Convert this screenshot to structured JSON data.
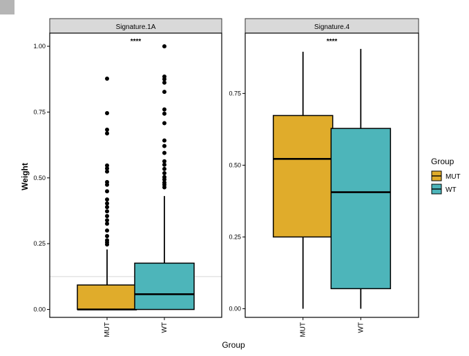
{
  "chart_data": {
    "type": "boxplot",
    "xlabel": "Group",
    "ylabel": "Weight",
    "legend": {
      "title": "Group",
      "placement": "right",
      "entries": [
        {
          "label": "MUT",
          "color": "#E0AC2B"
        },
        {
          "label": "WT",
          "color": "#4DB5BA"
        }
      ]
    },
    "colors": {
      "MUT": "#E0AC2B",
      "WT": "#4DB5BA",
      "strip": "#d9d9d9"
    },
    "grid": false,
    "panels": [
      {
        "title": "Signature.1A",
        "significance": "****",
        "ylim": [
          -0.03,
          1.05
        ],
        "yticks": [
          0.0,
          0.25,
          0.5,
          0.75,
          1.0
        ],
        "yticklabels": [
          "0.00",
          "0.25",
          "0.50",
          "0.75",
          "1.00"
        ],
        "reference_line": 0.125,
        "categories": [
          "MUT",
          "WT"
        ],
        "boxes": [
          {
            "group": "MUT",
            "whisker_low": 0.0,
            "q1": 0.0,
            "median": 0.0,
            "q3": 0.093,
            "whisker_high": 0.228,
            "outliers": [
              0.247,
              0.255,
              0.263,
              0.279,
              0.3,
              0.326,
              0.339,
              0.355,
              0.373,
              0.389,
              0.403,
              0.418,
              0.449,
              0.474,
              0.484,
              0.524,
              0.536,
              0.547,
              0.669,
              0.683,
              0.746,
              0.877
            ]
          },
          {
            "group": "WT",
            "whisker_low": 0.0,
            "q1": 0.0,
            "median": 0.058,
            "q3": 0.176,
            "whisker_high": 0.431,
            "outliers": [
              0.464,
              0.474,
              0.482,
              0.494,
              0.503,
              0.518,
              0.534,
              0.55,
              0.563,
              0.595,
              0.621,
              0.642,
              0.708,
              0.744,
              0.76,
              0.827,
              0.862,
              0.875,
              0.885,
              1.0
            ]
          }
        ]
      },
      {
        "title": "Signature.4",
        "significance": "****",
        "ylim": [
          -0.03,
          0.96
        ],
        "yticks": [
          0.0,
          0.25,
          0.5,
          0.75
        ],
        "yticklabels": [
          "0.00",
          "0.25",
          "0.50",
          "0.75"
        ],
        "categories": [
          "MUT",
          "WT"
        ],
        "boxes": [
          {
            "group": "MUT",
            "whisker_low": 0.0,
            "q1": 0.25,
            "median": 0.522,
            "q3": 0.673,
            "whisker_high": 0.895,
            "outliers": []
          },
          {
            "group": "WT",
            "whisker_low": 0.0,
            "q1": 0.07,
            "median": 0.406,
            "q3": 0.628,
            "whisker_high": 0.905,
            "outliers": []
          }
        ]
      }
    ]
  }
}
